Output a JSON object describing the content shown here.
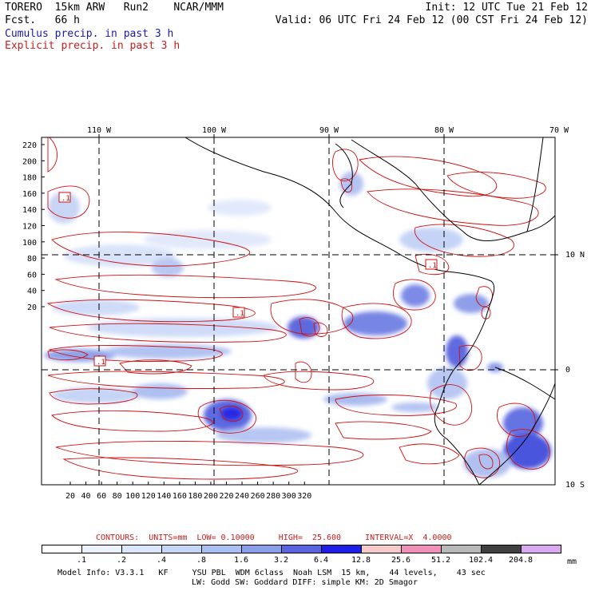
{
  "header": {
    "line1_left": "TORERO  15km ARW   Run2    NCAR/MMM",
    "line1_right": "Init: 12 UTC Tue 21 Feb 12",
    "line2_left": "Fcst.   66 h",
    "line2_right": "Valid: 06 UTC Fri 24 Feb 12 (00 CST Fri 24 Feb 12)",
    "line3": "Cumulus precip. in past 3 h",
    "line4": "Explicit precip. in past 3 h"
  },
  "map": {
    "lon_labels": [
      "110 W",
      "100 W",
      "90 W",
      "80 W",
      "70 W"
    ],
    "lat_labels": [
      "10 N",
      "0",
      "10 S"
    ],
    "y_ticks": [
      "220",
      "200",
      "180",
      "160",
      "140",
      "120",
      "100",
      "80",
      "60",
      "40",
      "20"
    ],
    "x_ticks": [
      "20",
      "40",
      "60",
      "80",
      "100",
      "120",
      "140",
      "160",
      "180",
      "200",
      "220",
      "240",
      "260",
      "280",
      "300",
      "320"
    ],
    "low_markers": [
      ".1",
      ".1",
      ".1",
      ".1"
    ],
    "contour_color": "#d01010",
    "coast_color": "#000000"
  },
  "contours_caption": "CONTOURS:  UNITS=mm  LOW= 0.10000     HIGH=  25.600     INTERVAL=X  4.0000",
  "colorbar": {
    "labels": [
      ".1",
      ".2",
      ".4",
      ".8",
      "1.6",
      "3.2",
      "6.4",
      "12.8",
      "25.6",
      "51.2",
      "102.4",
      "204.8"
    ],
    "unit": "mm",
    "colors": [
      "#ffffff",
      "#ecf2fc",
      "#d9e6fb",
      "#c5d6f7",
      "#aabff2",
      "#8a9ee9",
      "#5a64e0",
      "#1e1ee6",
      "#f7c9c9",
      "#f090b8",
      "#b8b8b8",
      "#404040",
      "#d8a8f0"
    ]
  },
  "model_info": {
    "line1": "Model Info: V3.3.1   KF     YSU PBL  WDM 6class  Noah LSM  15 km,    44 levels,    43 sec",
    "line2": "LW: Godd SW: Goddard DIFF: simple KM: 2D Smagor"
  }
}
